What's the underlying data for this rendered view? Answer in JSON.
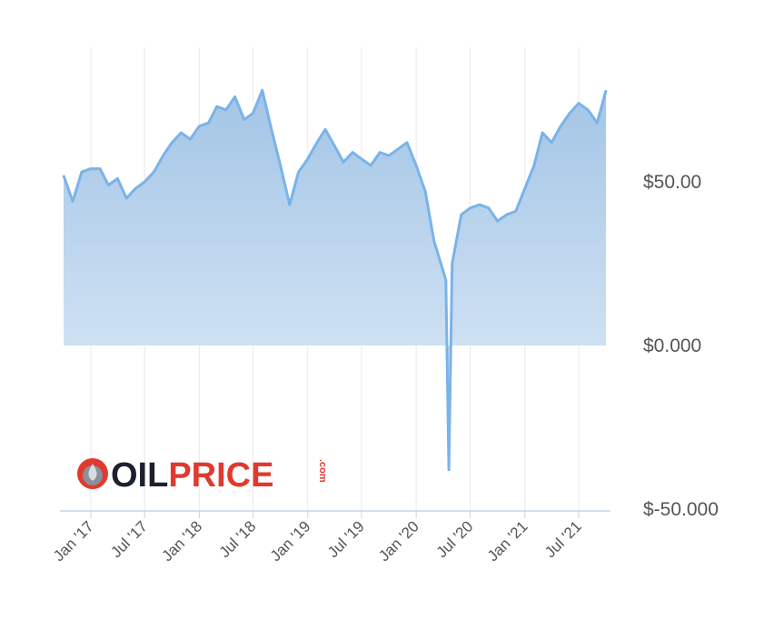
{
  "chart_data": {
    "type": "area",
    "title": "",
    "xlabel": "",
    "ylabel": "",
    "ylim": [
      -50,
      90
    ],
    "grid": "vertical",
    "y_ticks": [
      {
        "value": 50,
        "label": "$50.00"
      },
      {
        "value": 0,
        "label": "$0.000"
      },
      {
        "value": -50,
        "label": "$-50.000"
      }
    ],
    "x_ticks": [
      {
        "value": "2017-01",
        "label": "Jan '17"
      },
      {
        "value": "2017-07",
        "label": "Jul '17"
      },
      {
        "value": "2018-01",
        "label": "Jan '18"
      },
      {
        "value": "2018-07",
        "label": "Jul '18"
      },
      {
        "value": "2019-01",
        "label": "Jan '19"
      },
      {
        "value": "2019-07",
        "label": "Jul '19"
      },
      {
        "value": "2020-01",
        "label": "Jan '20"
      },
      {
        "value": "2020-07",
        "label": "Jul '20"
      },
      {
        "value": "2021-01",
        "label": "Jan '21"
      },
      {
        "value": "2021-07",
        "label": "Jul '21"
      }
    ],
    "series": [
      {
        "color": "#7ab3e8",
        "x": [
          "2016-10",
          "2016-11",
          "2016-12",
          "2017-01",
          "2017-02",
          "2017-03",
          "2017-04",
          "2017-05",
          "2017-06",
          "2017-07",
          "2017-08",
          "2017-09",
          "2017-10",
          "2017-11",
          "2017-12",
          "2018-01",
          "2018-02",
          "2018-03",
          "2018-04",
          "2018-05",
          "2018-06",
          "2018-07",
          "2018-08",
          "2018-09",
          "2018-10",
          "2018-11",
          "2018-12",
          "2019-01",
          "2019-02",
          "2019-03",
          "2019-04",
          "2019-05",
          "2019-06",
          "2019-07",
          "2019-08",
          "2019-09",
          "2019-10",
          "2019-11",
          "2019-12",
          "2020-01",
          "2020-02",
          "2020-03",
          "2020-04-10",
          "2020-04-20",
          "2020-05",
          "2020-06",
          "2020-07",
          "2020-08",
          "2020-09",
          "2020-10",
          "2020-11",
          "2020-12",
          "2021-01",
          "2021-02",
          "2021-03",
          "2021-04",
          "2021-05",
          "2021-06",
          "2021-07",
          "2021-08",
          "2021-09",
          "2021-10"
        ],
        "values": [
          52,
          44,
          53,
          54,
          54,
          49,
          51,
          45,
          48,
          50,
          53,
          58,
          62,
          65,
          63,
          67,
          68,
          73,
          72,
          76,
          69,
          71,
          78,
          66,
          55,
          43,
          53,
          57,
          62,
          66,
          61,
          56,
          59,
          57,
          55,
          59,
          58,
          60,
          62,
          55,
          47,
          32,
          20,
          -38,
          25,
          40,
          42,
          43,
          42,
          38,
          40,
          41,
          48,
          55,
          65,
          62,
          67,
          71,
          74,
          72,
          68,
          78
        ]
      }
    ]
  },
  "logo": {
    "text_dark": "OIL",
    "text_red": "PRICE",
    "text_com": ".com"
  },
  "colors": {
    "line": "#7ab3e8",
    "area_top": "#a8c8e6",
    "area_bottom": "#e3eef9",
    "grid": "#e6e6e6",
    "axis": "#c8d3eb",
    "logo_dark": "#1c2030",
    "logo_red": "#e03a30"
  }
}
